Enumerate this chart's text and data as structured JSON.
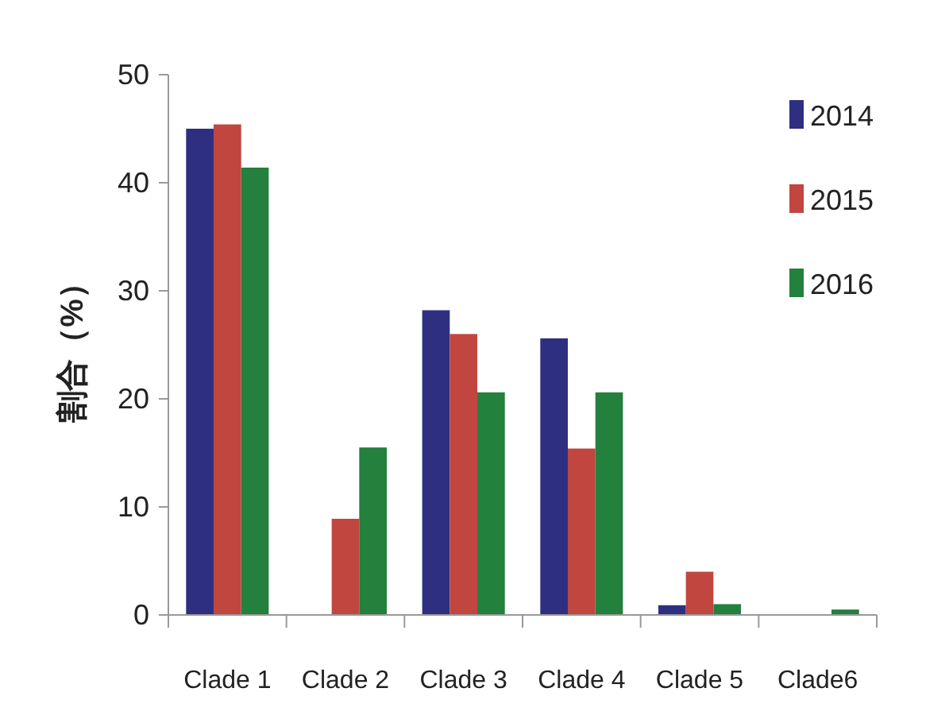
{
  "chart_data": {
    "type": "bar",
    "ylabel": "割合（%）",
    "categories": [
      "Clade 1",
      "Clade 2",
      "Clade 3",
      "Clade 4",
      "Clade 5",
      "Clade6"
    ],
    "series": [
      {
        "name": "2014",
        "color": "#2e2f80",
        "values": [
          45.0,
          0,
          28.2,
          25.6,
          0.9,
          0
        ]
      },
      {
        "name": "2015",
        "color": "#c0463f",
        "values": [
          45.4,
          8.9,
          26.0,
          15.4,
          4.0,
          0
        ]
      },
      {
        "name": "2016",
        "color": "#23803d",
        "values": [
          41.4,
          15.5,
          20.6,
          20.6,
          1.0,
          0.5
        ]
      }
    ],
    "ylim": [
      0,
      50
    ],
    "yticks": [
      0,
      10,
      20,
      30,
      40,
      50
    ],
    "grid": false,
    "legend": "top right"
  }
}
